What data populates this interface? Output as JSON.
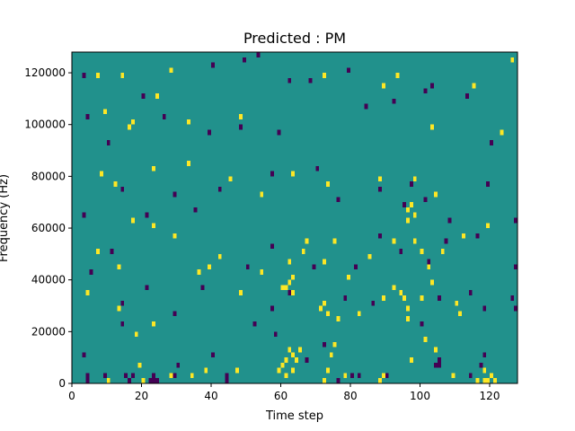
{
  "colors": {
    "background": "#21918c",
    "low": "#440154",
    "high": "#fde725",
    "axis": "#000000"
  },
  "chart_data": {
    "type": "heatmap",
    "title": "Predicted : PM",
    "xlabel": "Time step",
    "ylabel": "Frequency (Hz)",
    "xlim": [
      0,
      128
    ],
    "ylim": [
      0,
      128000
    ],
    "x_ticks": [
      0,
      20,
      40,
      60,
      80,
      100,
      120
    ],
    "y_ticks": [
      0,
      20000,
      40000,
      60000,
      80000,
      100000,
      120000
    ],
    "bin_height_hz": 2000,
    "value_levels": {
      "low": 0,
      "background": 1,
      "high": 2
    },
    "cells": {
      "low": [
        [
          4,
          0
        ],
        [
          4,
          2000
        ],
        [
          9,
          2000
        ],
        [
          15,
          2000
        ],
        [
          16,
          0
        ],
        [
          17,
          2000
        ],
        [
          22,
          0
        ],
        [
          23,
          0
        ],
        [
          23,
          2000
        ],
        [
          24,
          0
        ],
        [
          29,
          2000
        ],
        [
          30,
          6000
        ],
        [
          40,
          10000
        ],
        [
          44,
          0
        ],
        [
          44,
          2000
        ],
        [
          52,
          22000
        ],
        [
          58,
          18000
        ],
        [
          67,
          8000
        ],
        [
          72,
          14000
        ],
        [
          76,
          0
        ],
        [
          80,
          2000
        ],
        [
          82,
          2000
        ],
        [
          90,
          2000
        ],
        [
          104,
          6000
        ],
        [
          105,
          6000
        ],
        [
          105,
          8000
        ],
        [
          114,
          2000
        ],
        [
          117,
          6000
        ],
        [
          118,
          10000
        ],
        [
          3,
          10000
        ],
        [
          14,
          22000
        ],
        [
          14,
          30000
        ],
        [
          29,
          26000
        ],
        [
          57,
          28000
        ],
        [
          62,
          34000
        ],
        [
          78,
          32000
        ],
        [
          86,
          30000
        ],
        [
          100,
          22000
        ],
        [
          105,
          32000
        ],
        [
          114,
          34000
        ],
        [
          118,
          28000
        ],
        [
          126,
          32000
        ],
        [
          127,
          28000
        ],
        [
          5,
          42000
        ],
        [
          11,
          50000
        ],
        [
          21,
          36000
        ],
        [
          37,
          36000
        ],
        [
          50,
          44000
        ],
        [
          57,
          52000
        ],
        [
          69,
          44000
        ],
        [
          81,
          44000
        ],
        [
          88,
          56000
        ],
        [
          94,
          50000
        ],
        [
          102,
          46000
        ],
        [
          107,
          54000
        ],
        [
          116,
          56000
        ],
        [
          127,
          44000
        ],
        [
          3,
          64000
        ],
        [
          14,
          74000
        ],
        [
          21,
          64000
        ],
        [
          29,
          72000
        ],
        [
          35,
          66000
        ],
        [
          42,
          74000
        ],
        [
          57,
          80000
        ],
        [
          70,
          82000
        ],
        [
          76,
          70000
        ],
        [
          88,
          74000
        ],
        [
          95,
          68000
        ],
        [
          97,
          76000
        ],
        [
          101,
          70000
        ],
        [
          108,
          62000
        ],
        [
          119,
          76000
        ],
        [
          127,
          62000
        ],
        [
          10,
          92000
        ],
        [
          20,
          110000
        ],
        [
          26,
          102000
        ],
        [
          39,
          96000
        ],
        [
          48,
          98000
        ],
        [
          59,
          96000
        ],
        [
          68,
          116000
        ],
        [
          84,
          106000
        ],
        [
          92,
          108000
        ],
        [
          103,
          114000
        ],
        [
          113,
          110000
        ],
        [
          120,
          92000
        ],
        [
          3,
          118000
        ],
        [
          4,
          102000
        ],
        [
          40,
          122000
        ],
        [
          49,
          124000
        ],
        [
          53,
          126000
        ],
        [
          62,
          116000
        ],
        [
          79,
          120000
        ],
        [
          101,
          112000
        ]
      ],
      "high": [
        [
          10,
          0
        ],
        [
          19,
          6000
        ],
        [
          20,
          0
        ],
        [
          28,
          2000
        ],
        [
          34,
          2000
        ],
        [
          38,
          4000
        ],
        [
          47,
          4000
        ],
        [
          59,
          4000
        ],
        [
          60,
          6000
        ],
        [
          61,
          8000
        ],
        [
          61,
          2000
        ],
        [
          62,
          12000
        ],
        [
          63,
          10000
        ],
        [
          63,
          4000
        ],
        [
          64,
          8000
        ],
        [
          65,
          12000
        ],
        [
          72,
          0
        ],
        [
          73,
          4000
        ],
        [
          74,
          10000
        ],
        [
          75,
          14000
        ],
        [
          78,
          2000
        ],
        [
          88,
          0
        ],
        [
          89,
          2000
        ],
        [
          97,
          8000
        ],
        [
          101,
          16000
        ],
        [
          104,
          12000
        ],
        [
          109,
          2000
        ],
        [
          116,
          0
        ],
        [
          118,
          4000
        ],
        [
          118,
          0
        ],
        [
          119,
          0
        ],
        [
          120,
          2000
        ],
        [
          121,
          0
        ],
        [
          4,
          34000
        ],
        [
          13,
          28000
        ],
        [
          18,
          18000
        ],
        [
          23,
          22000
        ],
        [
          48,
          34000
        ],
        [
          60,
          36000
        ],
        [
          61,
          36000
        ],
        [
          62,
          38000
        ],
        [
          63,
          34000
        ],
        [
          63,
          40000
        ],
        [
          71,
          28000
        ],
        [
          72,
          30000
        ],
        [
          73,
          26000
        ],
        [
          76,
          24000
        ],
        [
          82,
          26000
        ],
        [
          89,
          32000
        ],
        [
          92,
          36000
        ],
        [
          94,
          34000
        ],
        [
          95,
          32000
        ],
        [
          96,
          28000
        ],
        [
          96,
          24000
        ],
        [
          100,
          32000
        ],
        [
          103,
          38000
        ],
        [
          110,
          30000
        ],
        [
          111,
          26000
        ],
        [
          7,
          50000
        ],
        [
          13,
          44000
        ],
        [
          17,
          62000
        ],
        [
          23,
          60000
        ],
        [
          29,
          56000
        ],
        [
          36,
          42000
        ],
        [
          39,
          44000
        ],
        [
          42,
          48000
        ],
        [
          54,
          42000
        ],
        [
          62,
          46000
        ],
        [
          66,
          50000
        ],
        [
          67,
          54000
        ],
        [
          72,
          46000
        ],
        [
          75,
          54000
        ],
        [
          79,
          40000
        ],
        [
          85,
          48000
        ],
        [
          92,
          54000
        ],
        [
          96,
          62000
        ],
        [
          96,
          66000
        ],
        [
          97,
          68000
        ],
        [
          98,
          64000
        ],
        [
          98,
          54000
        ],
        [
          100,
          50000
        ],
        [
          102,
          44000
        ],
        [
          106,
          50000
        ],
        [
          112,
          56000
        ],
        [
          119,
          60000
        ],
        [
          8,
          80000
        ],
        [
          12,
          76000
        ],
        [
          23,
          82000
        ],
        [
          33,
          84000
        ],
        [
          45,
          78000
        ],
        [
          54,
          72000
        ],
        [
          63,
          80000
        ],
        [
          73,
          76000
        ],
        [
          88,
          78000
        ],
        [
          98,
          78000
        ],
        [
          104,
          72000
        ],
        [
          9,
          104000
        ],
        [
          17,
          100000
        ],
        [
          24,
          110000
        ],
        [
          33,
          100000
        ],
        [
          48,
          102000
        ],
        [
          72,
          118000
        ],
        [
          89,
          114000
        ],
        [
          93,
          118000
        ],
        [
          103,
          98000
        ],
        [
          115,
          114000
        ],
        [
          123,
          96000
        ],
        [
          126,
          124000
        ],
        [
          7,
          118000
        ],
        [
          14,
          118000
        ],
        [
          16,
          98000
        ],
        [
          28,
          120000
        ]
      ]
    }
  }
}
